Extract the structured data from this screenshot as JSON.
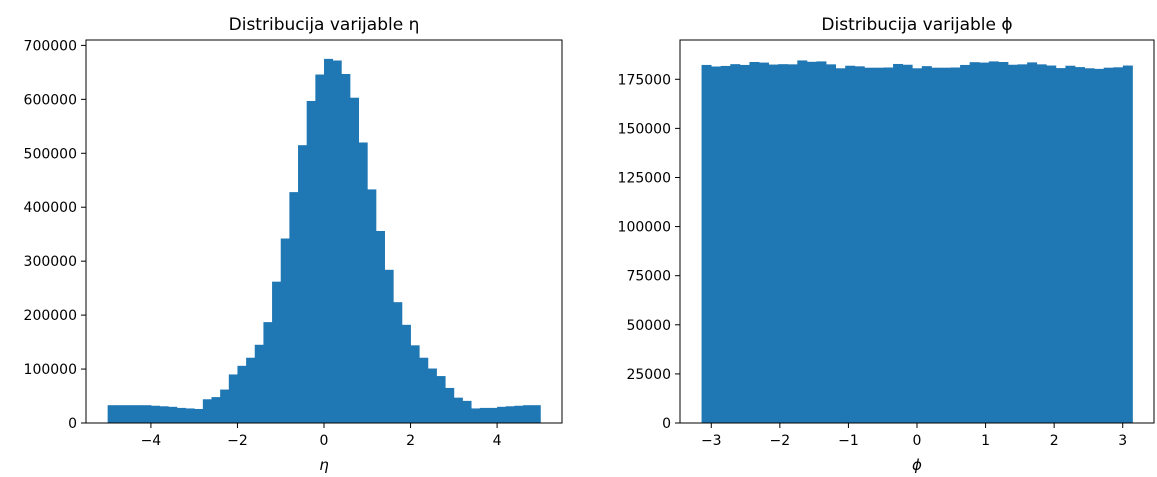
{
  "chart_data": [
    {
      "type": "bar",
      "title": "Distribucija varijable η",
      "xlabel": "η",
      "ylabel": "",
      "bar_color": "#1f77b4",
      "x_range": [
        -5,
        5
      ],
      "xlim": [
        -5.5,
        5.5
      ],
      "ylim": [
        0,
        710000
      ],
      "xticks": [
        -4,
        -2,
        0,
        2,
        4
      ],
      "xtick_labels": [
        "−4",
        "−2",
        "0",
        "2",
        "4"
      ],
      "yticks": [
        0,
        100000,
        200000,
        300000,
        400000,
        500000,
        600000,
        700000
      ],
      "ytick_labels": [
        "0",
        "100000",
        "200000",
        "300000",
        "400000",
        "500000",
        "600000",
        "700000"
      ],
      "grid": false,
      "values": [
        33000,
        33000,
        33000,
        33000,
        33000,
        32000,
        31000,
        30000,
        28000,
        27000,
        26000,
        44000,
        48000,
        62000,
        90000,
        106000,
        121000,
        145000,
        187000,
        262000,
        342000,
        428000,
        515000,
        597000,
        646000,
        675000,
        672000,
        647000,
        603000,
        520000,
        433000,
        356000,
        284000,
        224000,
        182000,
        144000,
        121000,
        101000,
        87000,
        65000,
        47000,
        41000,
        27000,
        28000,
        28000,
        30000,
        31000,
        32000,
        33000,
        33000
      ]
    },
    {
      "type": "bar",
      "title": "Distribucija varijable ϕ",
      "xlabel": "ϕ",
      "ylabel": "",
      "bar_color": "#1f77b4",
      "x_range": [
        -3.14159,
        3.14159
      ],
      "xlim": [
        -3.456,
        3.456
      ],
      "ylim": [
        0,
        195000
      ],
      "xticks": [
        -3,
        -2,
        -1,
        0,
        1,
        2,
        3
      ],
      "xtick_labels": [
        "−3",
        "−2",
        "−1",
        "0",
        "1",
        "2",
        "3"
      ],
      "yticks": [
        0,
        25000,
        50000,
        75000,
        100000,
        125000,
        150000,
        175000
      ],
      "ytick_labels": [
        "0",
        "25000",
        "50000",
        "75000",
        "100000",
        "125000",
        "150000",
        "175000"
      ],
      "grid": false,
      "values": [
        182300,
        181500,
        181800,
        182700,
        182300,
        183800,
        183500,
        182500,
        182700,
        182600,
        184600,
        183900,
        184100,
        182600,
        180600,
        181900,
        181600,
        180900,
        180900,
        181000,
        182800,
        182400,
        180600,
        181700,
        180900,
        180900,
        181000,
        182300,
        183700,
        183500,
        184100,
        183800,
        182400,
        182600,
        183600,
        182600,
        182000,
        180700,
        181900,
        181200,
        180600,
        180300,
        180900,
        181100,
        182000
      ]
    }
  ]
}
